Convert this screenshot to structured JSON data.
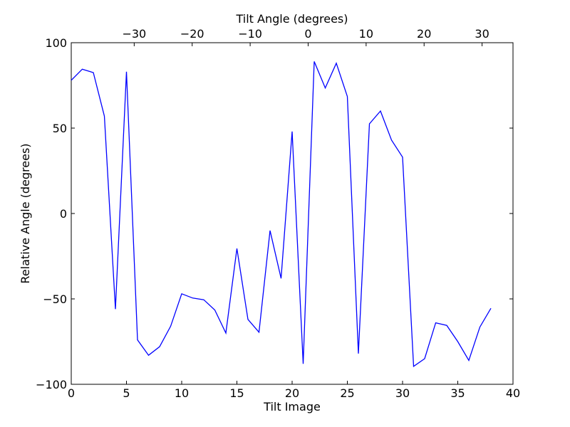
{
  "chart_data": {
    "type": "line",
    "xlabel": "Tilt Image",
    "ylabel": "Relative Angle (degrees)",
    "top_xlabel": "Tilt Angle (degrees)",
    "xlim": [
      0,
      40
    ],
    "ylim": [
      -100,
      100
    ],
    "x_ticks": [
      0,
      5,
      10,
      15,
      20,
      25,
      30,
      35,
      40
    ],
    "y_ticks": [
      -100,
      -50,
      0,
      50,
      100
    ],
    "y_tick_labels": [
      "−100",
      "−50",
      "0",
      "50",
      "100"
    ],
    "top_ticks": [
      {
        "x": 5.7,
        "label": "−30"
      },
      {
        "x": 10.95,
        "label": "−20"
      },
      {
        "x": 16.2,
        "label": "−10"
      },
      {
        "x": 21.45,
        "label": "0"
      },
      {
        "x": 26.7,
        "label": "10"
      },
      {
        "x": 31.95,
        "label": "20"
      },
      {
        "x": 37.2,
        "label": "30"
      }
    ],
    "grid": false,
    "series": [
      {
        "color": "#0000ff",
        "x": [
          0,
          1,
          2,
          3,
          4,
          5,
          6,
          7,
          8,
          9,
          10,
          11,
          12,
          13,
          14,
          15,
          16,
          17,
          18,
          19,
          20,
          21,
          22,
          23,
          24,
          25,
          26,
          27,
          28,
          29,
          30,
          31,
          32,
          33,
          34,
          35,
          36,
          37,
          38
        ],
        "y": [
          78,
          84.5,
          82.5,
          57,
          -56,
          83,
          -74,
          -83,
          -78,
          -66,
          -47,
          -49.5,
          -50.5,
          -56.5,
          -70,
          -20.5,
          -62,
          -69.5,
          -10,
          -38,
          48,
          -88,
          89,
          73.5,
          88,
          68.5,
          -82,
          52.5,
          60,
          43,
          33,
          -89.5,
          -85,
          -64,
          -65.5,
          -75,
          -86,
          -66.5,
          -55.5
        ]
      }
    ]
  }
}
